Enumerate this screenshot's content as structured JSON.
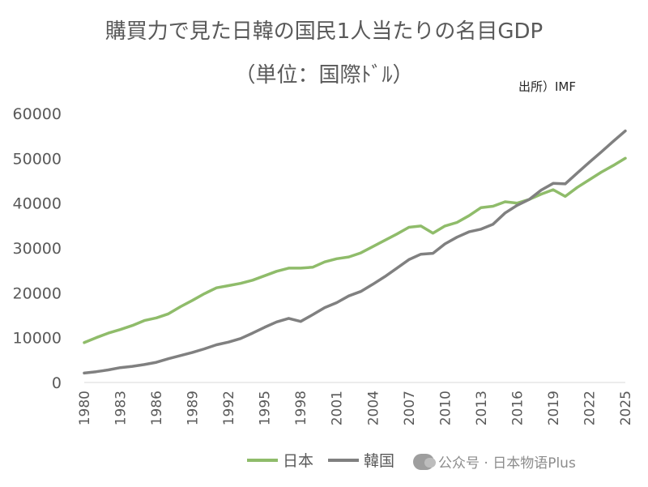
{
  "chart_data": {
    "type": "line",
    "title": "購買力で見た日韓の国民1人当たりの名目GDP",
    "subtitle": "（単位：国際ﾄﾞﾙ）",
    "source": "出所）IMF",
    "xlabel": "",
    "ylabel": "",
    "xlim": [
      1980,
      2025
    ],
    "ylim": [
      0,
      60000
    ],
    "y_ticks": [
      "0",
      "10000",
      "20000",
      "30000",
      "40000",
      "50000",
      "60000"
    ],
    "x_ticks": [
      "1980",
      "1983",
      "1986",
      "1989",
      "1992",
      "1995",
      "1998",
      "2001",
      "2004",
      "2007",
      "2010",
      "2013",
      "2016",
      "2019",
      "2022",
      "2025"
    ],
    "grid": false,
    "legend": "bottom",
    "x": [
      1980,
      1981,
      1982,
      1983,
      1984,
      1985,
      1986,
      1987,
      1988,
      1989,
      1990,
      1991,
      1992,
      1993,
      1994,
      1995,
      1996,
      1997,
      1998,
      1999,
      2000,
      2001,
      2002,
      2003,
      2004,
      2005,
      2006,
      2007,
      2008,
      2009,
      2010,
      2011,
      2012,
      2013,
      2014,
      2015,
      2016,
      2017,
      2018,
      2019,
      2020,
      2021,
      2022,
      2023,
      2024,
      2025
    ],
    "series": [
      {
        "name": "日本",
        "color": "#8fbc6a",
        "values": [
          8900,
          10000,
          11000,
          11800,
          12700,
          13800,
          14400,
          15300,
          16900,
          18300,
          19800,
          21100,
          21600,
          22100,
          22800,
          23800,
          24800,
          25500,
          25500,
          25700,
          26900,
          27600,
          28000,
          28900,
          30300,
          31700,
          33100,
          34600,
          34900,
          33300,
          34900,
          35700,
          37200,
          39000,
          39300,
          40300,
          40000,
          40800,
          42000,
          43000,
          41500,
          43500,
          45200,
          46900,
          48400,
          50000
        ]
      },
      {
        "name": "韓国",
        "color": "#808080",
        "values": [
          2100,
          2400,
          2800,
          3300,
          3600,
          4000,
          4500,
          5300,
          6000,
          6700,
          7500,
          8400,
          9000,
          9800,
          11000,
          12300,
          13500,
          14300,
          13600,
          15100,
          16700,
          17800,
          19300,
          20300,
          21900,
          23600,
          25500,
          27400,
          28600,
          28800,
          30900,
          32400,
          33600,
          34200,
          35300,
          37800,
          39500,
          40800,
          42900,
          44400,
          44300,
          46700,
          49100,
          51400,
          53800,
          56100
        ]
      }
    ]
  }
}
